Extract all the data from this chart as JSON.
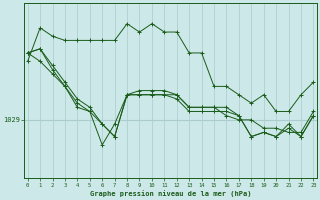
{
  "bg_color": "#cce8e8",
  "grid_color": "#aacccc",
  "line_color": "#1a5c1a",
  "xlabel": "Graphe pression niveau de la mer (hPa)",
  "ylabel_tick": "1029",
  "ylabel_value": 1029,
  "series": [
    [
      1036.0,
      1040.0,
      1039.0,
      1038.5,
      1038.5,
      1038.5,
      1038.5,
      1038.5,
      1040.5,
      1039.5,
      1040.5,
      1039.5,
      1039.5,
      1037.0,
      1037.0,
      1033.0,
      1033.0,
      1032.0,
      1031.0,
      1032.0,
      1030.0,
      1030.0,
      1032.0,
      1033.5
    ],
    [
      1037.0,
      1036.0,
      1034.5,
      1033.0,
      1030.5,
      1030.0,
      1026.0,
      1028.5,
      1032.0,
      1032.0,
      1032.0,
      1032.0,
      1032.0,
      1030.5,
      1030.5,
      1030.5,
      1029.5,
      1029.0,
      1029.0,
      1028.0,
      1028.0,
      1027.5,
      1027.5,
      1030.0
    ],
    [
      1037.0,
      1037.5,
      1035.0,
      1033.0,
      1031.0,
      1030.0,
      1028.5,
      1027.0,
      1032.0,
      1032.0,
      1032.0,
      1032.0,
      1031.5,
      1030.0,
      1030.0,
      1030.0,
      1030.0,
      1029.5,
      1027.0,
      1027.5,
      1027.0,
      1028.0,
      1027.0,
      1029.5
    ],
    [
      1037.0,
      1037.5,
      1035.5,
      1033.5,
      1031.5,
      1030.5,
      1028.5,
      1027.0,
      1032.0,
      1032.5,
      1032.5,
      1032.5,
      1032.0,
      1030.5,
      1030.5,
      1030.5,
      1030.5,
      1029.5,
      1027.0,
      1027.5,
      1027.0,
      1028.5,
      1027.0,
      1029.5
    ]
  ],
  "xlim": [
    -0.3,
    23.3
  ],
  "ylim": [
    1022.0,
    1043.0
  ],
  "hline_y": 1029
}
